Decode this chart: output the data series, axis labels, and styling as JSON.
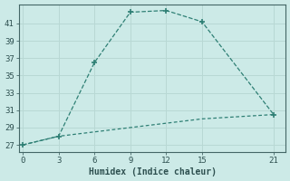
{
  "xlabel": "Humidex (Indice chaleur)",
  "x_upper": [
    0,
    3,
    6,
    9,
    12,
    15,
    21
  ],
  "y_upper": [
    27,
    28.0,
    36.5,
    42.3,
    42.5,
    41.2,
    30.5
  ],
  "x_lower": [
    0,
    3,
    6,
    9,
    12,
    15,
    21
  ],
  "y_lower": [
    27.0,
    28.0,
    28.5,
    29.0,
    29.5,
    30.0,
    30.5
  ],
  "line_color": "#2e7f74",
  "bg_color": "#cceae7",
  "grid_color": "#b8d8d4",
  "xticks": [
    0,
    3,
    6,
    9,
    12,
    15,
    21
  ],
  "yticks": [
    27,
    29,
    31,
    33,
    35,
    37,
    39,
    41
  ],
  "xlim": [
    -0.3,
    22
  ],
  "ylim": [
    26.2,
    43.2
  ]
}
